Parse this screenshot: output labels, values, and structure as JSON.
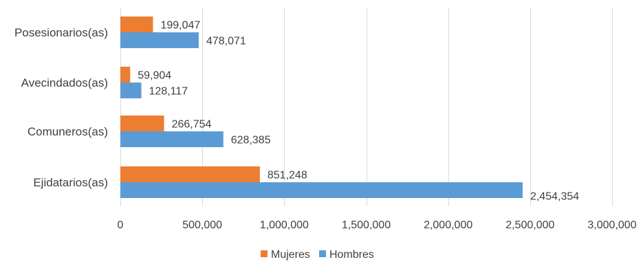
{
  "chart_data": {
    "type": "bar",
    "orientation": "horizontal",
    "categories": [
      "Posesionarios(as)",
      "Avecindados(as)",
      "Comuneros(as)",
      "Ejidatarios(as)"
    ],
    "series": [
      {
        "name": "Mujeres",
        "color": "#ED7D31",
        "values": [
          199047,
          59904,
          266754,
          851248
        ]
      },
      {
        "name": "Hombres",
        "color": "#5B9BD5",
        "values": [
          478071,
          128117,
          628385,
          2454354
        ]
      }
    ],
    "value_labels": {
      "Mujeres": [
        "199,047",
        "59,904",
        "266,754",
        "851,248"
      ],
      "Hombres": [
        "478,071",
        "128,117",
        "628,385",
        "2,454,354"
      ]
    },
    "ticks": [
      "0",
      "500,000",
      "1,000,000",
      "1,500,000",
      "2,000,000",
      "2,500,000",
      "3,000,000"
    ],
    "xlim": [
      0,
      3000000
    ],
    "grid": true,
    "legend_position": "bottom",
    "colors": {
      "gridline": "#D9D9D9",
      "text": "#404040"
    }
  }
}
